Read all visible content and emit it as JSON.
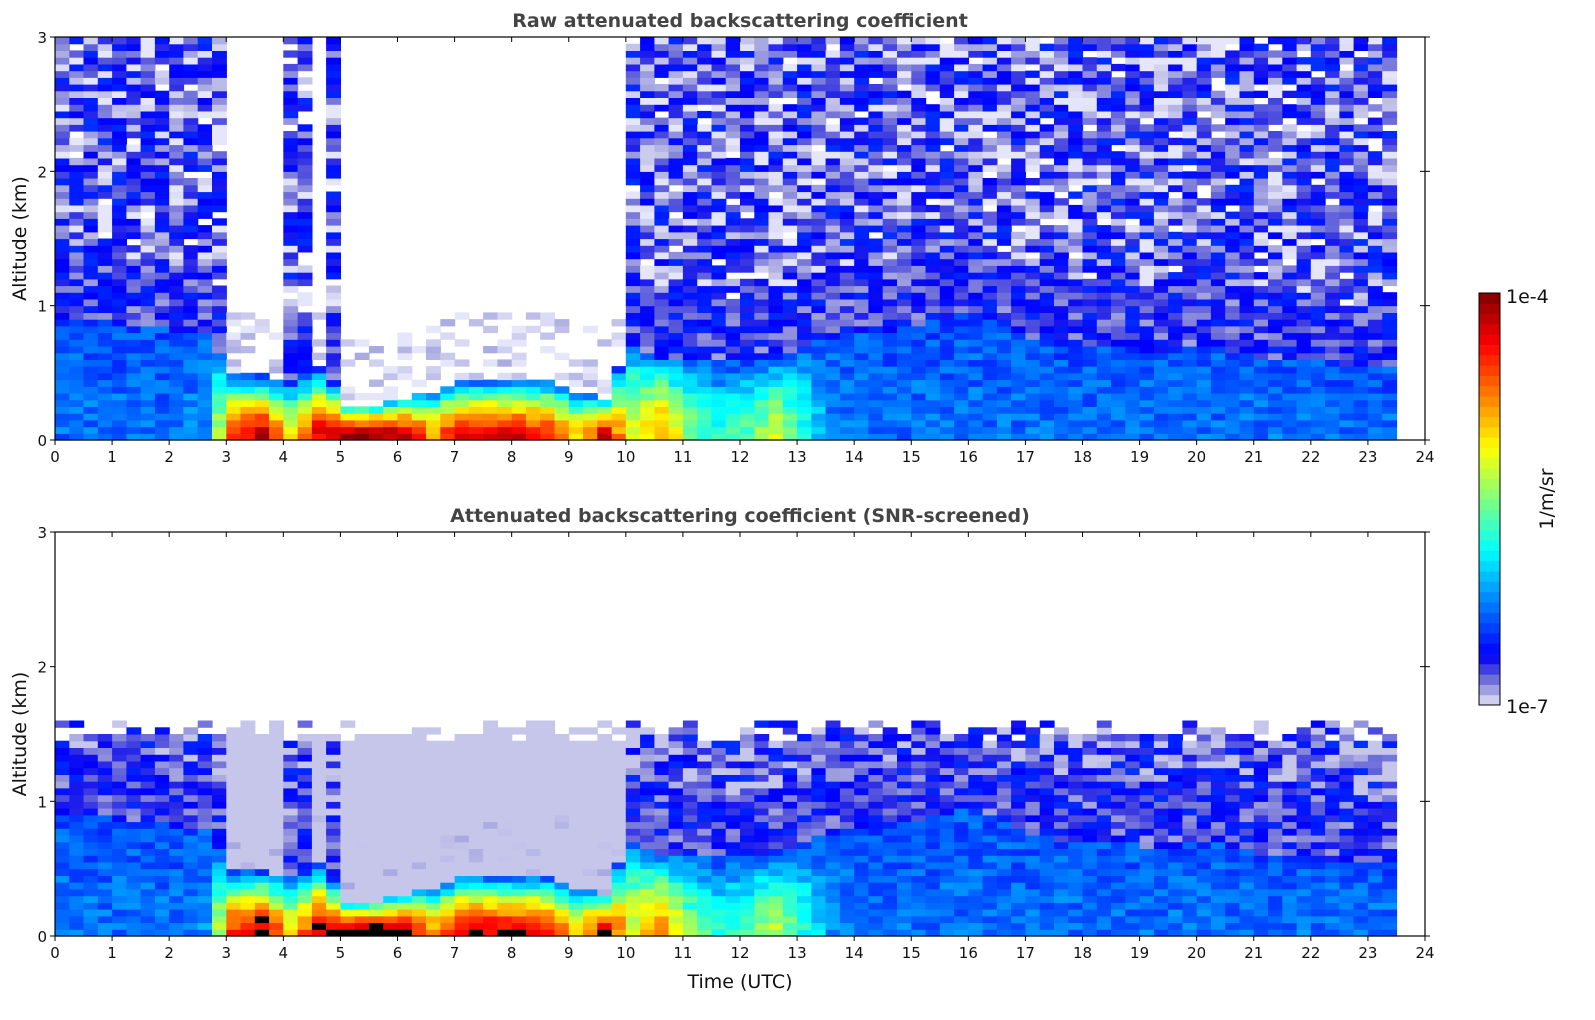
{
  "chart_data": [
    {
      "type": "heatmap",
      "title": "Raw attenuated backscattering coefficient",
      "xlabel": "",
      "ylabel": "Altitude (km)",
      "xlim": [
        0,
        24
      ],
      "ylim": [
        0,
        3
      ],
      "xticks": [
        "0",
        "1",
        "2",
        "3",
        "4",
        "5",
        "6",
        "7",
        "8",
        "9",
        "10",
        "11",
        "12",
        "13",
        "14",
        "15",
        "16",
        "17",
        "18",
        "19",
        "20",
        "21",
        "22",
        "23",
        "24"
      ],
      "yticks": [
        "0",
        "1",
        "2",
        "3"
      ],
      "screened": false
    },
    {
      "type": "heatmap",
      "title": "Attenuated backscattering coefficient (SNR-screened)",
      "xlabel": "Time (UTC)",
      "ylabel": "Altitude (km)",
      "xlim": [
        0,
        24
      ],
      "ylim": [
        0,
        3
      ],
      "xticks": [
        "0",
        "1",
        "2",
        "3",
        "4",
        "5",
        "6",
        "7",
        "8",
        "9",
        "10",
        "11",
        "12",
        "13",
        "14",
        "15",
        "16",
        "17",
        "18",
        "19",
        "20",
        "21",
        "22",
        "23",
        "24"
      ],
      "yticks": [
        "0",
        "1",
        "2",
        "3"
      ],
      "screened": true
    }
  ],
  "profile": {
    "time_h": [
      0,
      0.5,
      1,
      1.5,
      2,
      2.5,
      3,
      3.5,
      4,
      4.5,
      5,
      5.5,
      6,
      6.5,
      7,
      7.5,
      8,
      8.5,
      9,
      9.5,
      10,
      10.5,
      11,
      11.5,
      12,
      12.5,
      13,
      13.5,
      14,
      14.5,
      15,
      15.5,
      16,
      16.5,
      17,
      17.5,
      18,
      18.5,
      19,
      19.5,
      20,
      20.5,
      21,
      21.5,
      22,
      22.5,
      23,
      23.5
    ],
    "layer_top_km": [
      0.9,
      0.9,
      0.85,
      0.85,
      0.8,
      0.8,
      0.45,
      0.45,
      0.4,
      0.5,
      0.25,
      0.25,
      0.3,
      0.35,
      0.42,
      0.42,
      0.42,
      0.42,
      0.35,
      0.3,
      0.7,
      0.6,
      0.6,
      0.55,
      0.55,
      0.6,
      0.7,
      0.75,
      0.8,
      0.8,
      0.85,
      0.9,
      0.95,
      0.85,
      0.75,
      0.7,
      0.7,
      0.7,
      0.65,
      0.65,
      0.7,
      0.65,
      0.6,
      0.6,
      0.55,
      0.5,
      0.5,
      0.5
    ],
    "surface_log10_beta": [
      -6.3,
      -6.3,
      -6.3,
      -6.3,
      -6.3,
      -6.2,
      -4.5,
      -4.2,
      -5.0,
      -4.3,
      -4.1,
      -4.0,
      -4.2,
      -4.8,
      -4.3,
      -4.3,
      -4.3,
      -4.5,
      -5.0,
      -4.3,
      -5.2,
      -4.8,
      -5.5,
      -5.8,
      -5.6,
      -5.3,
      -5.8,
      -6.2,
      -6.3,
      -6.3,
      -6.3,
      -6.3,
      -6.3,
      -6.3,
      -6.3,
      -6.3,
      -6.3,
      -6.3,
      -6.3,
      -6.3,
      -6.3,
      -6.3,
      -6.3,
      -6.3,
      -6.3,
      -6.3,
      -6.3,
      -6.3
    ],
    "clear_sky_intervals_h": [
      [
        2.9,
        3.9
      ],
      [
        4.3,
        4.7
      ],
      [
        4.8,
        6.6
      ],
      [
        6.7,
        8.6
      ],
      [
        8.7,
        9.8
      ]
    ],
    "data_end_h": 23.5,
    "snr_cutoff_km": 1.5,
    "saturation_log10": -4.3
  },
  "colorbar": {
    "label": "1/m/sr",
    "min_label": "1e-7",
    "max_label": "1e-4",
    "log10_min": -7,
    "log10_max": -4
  }
}
